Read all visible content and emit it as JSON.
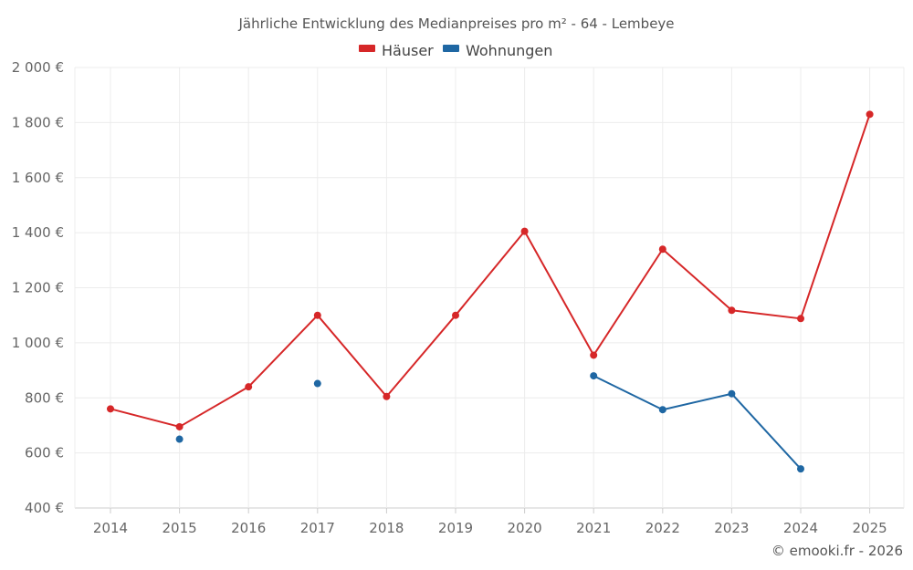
{
  "chart_data": {
    "type": "line",
    "title": "Jährliche Entwicklung des Medianpreises pro m² - 64 - Lembeye",
    "categories": [
      "2014",
      "2015",
      "2016",
      "2017",
      "2018",
      "2019",
      "2020",
      "2021",
      "2022",
      "2023",
      "2024",
      "2025"
    ],
    "y_tick_labels": [
      "400 €",
      "600 €",
      "800 €",
      "1 000 €",
      "1 200 €",
      "1 400 €",
      "1 600 €",
      "1 800 €",
      "2 000 €"
    ],
    "y_ticks": [
      400,
      600,
      800,
      1000,
      1200,
      1400,
      1600,
      1800,
      2000
    ],
    "ylim": [
      400,
      2000
    ],
    "grid": true,
    "legend_position": "top-center",
    "series": [
      {
        "name": "Häuser",
        "color": "#d62728",
        "values": [
          760,
          695,
          840,
          1100,
          805,
          1100,
          1405,
          955,
          1340,
          1118,
          1088,
          1830
        ]
      },
      {
        "name": "Wohnungen",
        "color": "#1f67a3",
        "values": [
          null,
          650,
          null,
          852,
          null,
          null,
          null,
          880,
          757,
          815,
          542,
          null
        ]
      }
    ],
    "credit": "© emooki.fr - 2026"
  }
}
